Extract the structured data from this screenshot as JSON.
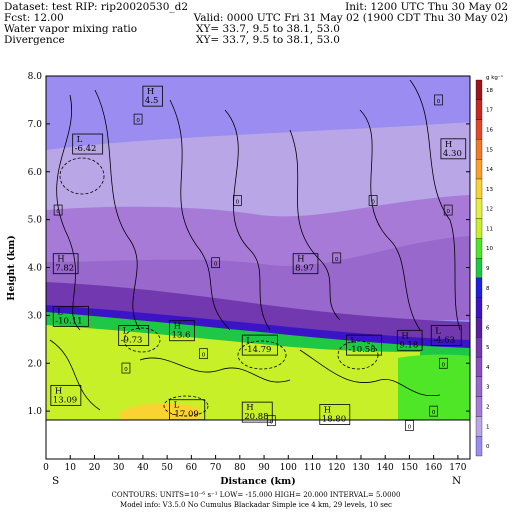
{
  "header": {
    "line1_left": "Dataset: test  RIP: rip20020530_d2",
    "line1_right": "Init: 1200 UTC Thu 30 May 02",
    "line2_left": "Fcst:    12.00",
    "line2_right": "Valid: 0000 UTC Fri 31 May 02 (1900 CDT Thu 30 May 02)",
    "line3_left": "Water vapor mixing ratio",
    "line3_right": "XY=   33.7,   9.5 to   38.1,  53.0",
    "line4_left": "Divergence",
    "line4_right": "XY=   33.7,   9.5 to   38.1,  53.0"
  },
  "footer": {
    "endpoint_left": "S",
    "endpoint_right": "N",
    "line1": "CONTOURS:  UNITS=10⁻⁶ s⁻¹   LOW=  -15.000        HIGH=   20.000     INTERVAL=   5.0000",
    "line2": "Model info: V3.5.0 No Cumulus Blackadar  Simple ice     4 km,   29 levels,   10 sec"
  },
  "chart_data": {
    "type": "heatmap",
    "title": "",
    "xlabel": "Distance (km)",
    "ylabel": "Height (km)",
    "xlim": [
      0,
      175
    ],
    "ylim": [
      0,
      8
    ],
    "x_ticks": [
      "0",
      "10",
      "20",
      "30",
      "40",
      "50",
      "60",
      "70",
      "80",
      "90",
      "100",
      "110",
      "120",
      "130",
      "140",
      "150",
      "160",
      "170"
    ],
    "y_tick_values": [
      1,
      2,
      3,
      4,
      5,
      6,
      7,
      8
    ],
    "y_ticks": [
      "1.0",
      "2.0",
      "3.0",
      "4.0",
      "5.0",
      "6.0",
      "7.0",
      "8.0"
    ],
    "colorbar": {
      "unit": "g kg⁻¹",
      "labels": [
        "0",
        "1",
        "2",
        "3",
        "4",
        "5",
        "6",
        "7",
        "8",
        "9",
        "10",
        "11",
        "12",
        "13",
        "14",
        "15",
        "16",
        "17",
        "18"
      ],
      "colors": [
        "#9a8cf0",
        "#b9a6e6",
        "#a77ad8",
        "#9868cc",
        "#8a4ec0",
        "#7238b0",
        "#5a1ea0",
        "#3c14c8",
        "#1e1ee6",
        "#1ec846",
        "#50e628",
        "#c8f028",
        "#e6f03c",
        "#fad232",
        "#faa028",
        "#f07828",
        "#e64628",
        "#c8281e",
        "#a0141e"
      ]
    },
    "color_regions": [
      {
        "name": "upper_dry",
        "mixing_ratio_g_kg": 0
      },
      {
        "name": "mid_band",
        "mixing_ratio_g_kg": 1
      },
      {
        "name": "lower_mid",
        "mixing_ratio_g_kg": 3
      },
      {
        "name": "moist_edge",
        "mixing_ratio_g_kg": 7
      },
      {
        "name": "boundary_layer",
        "mixing_ratio_g_kg": 11
      },
      {
        "name": "green_patch",
        "mixing_ratio_g_kg": 9
      }
    ],
    "extrema_labels": [
      {
        "kind": "H",
        "value": "4.5",
        "x": 40,
        "y": 7.6
      },
      {
        "kind": "L",
        "value": "-6.42",
        "x": 11,
        "y": 6.6
      },
      {
        "kind": "H",
        "value": "4.30",
        "x": 163,
        "y": 6.5
      },
      {
        "kind": "H",
        "value": "7.82",
        "x": 3,
        "y": 4.1
      },
      {
        "kind": "H",
        "value": "8.97",
        "x": 102,
        "y": 4.1
      },
      {
        "kind": "L",
        "value": "-10.11",
        "x": 3,
        "y": 3.0
      },
      {
        "kind": "L",
        "value": "-9.73",
        "x": 30,
        "y": 2.6
      },
      {
        "kind": "H",
        "value": "13.6",
        "x": 51,
        "y": 2.7
      },
      {
        "kind": "L",
        "value": "-14.79",
        "x": 81,
        "y": 2.4
      },
      {
        "kind": "L",
        "value": "-10.58",
        "x": 124,
        "y": 2.4
      },
      {
        "kind": "H",
        "value": "9.18",
        "x": 145,
        "y": 2.5
      },
      {
        "kind": "L",
        "value": "-4.63",
        "x": 159,
        "y": 2.6
      },
      {
        "kind": "H",
        "value": "13.09",
        "x": 2,
        "y": 1.35
      },
      {
        "kind": "L",
        "value": "-17.09",
        "x": 51,
        "y": 1.05
      },
      {
        "kind": "H",
        "value": "20.88",
        "x": 81,
        "y": 1.0
      },
      {
        "kind": "H",
        "value": "18.80",
        "x": 113,
        "y": 0.95
      }
    ],
    "zero_labels": [
      {
        "x": 38,
        "y": 7.1
      },
      {
        "x": 162,
        "y": 7.5
      },
      {
        "x": 5,
        "y": 5.2
      },
      {
        "x": 79,
        "y": 5.4
      },
      {
        "x": 135,
        "y": 5.4
      },
      {
        "x": 166,
        "y": 5.2
      },
      {
        "x": 70,
        "y": 4.1
      },
      {
        "x": 120,
        "y": 4.2
      },
      {
        "x": 33,
        "y": 1.9
      },
      {
        "x": 65,
        "y": 2.2
      },
      {
        "x": 164,
        "y": 2.0
      },
      {
        "x": 93,
        "y": 0.8
      },
      {
        "x": 150,
        "y": 0.7
      },
      {
        "x": 160,
        "y": 1.0
      }
    ]
  }
}
